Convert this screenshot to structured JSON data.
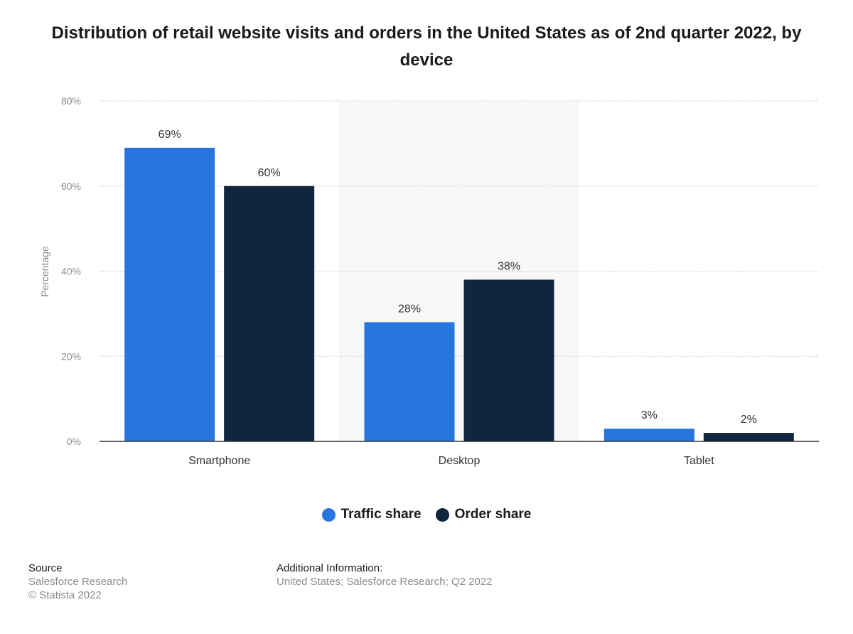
{
  "title": "Distribution of retail website visits and orders in the United States as of 2nd quarter 2022, by device",
  "chart_data": {
    "type": "bar",
    "categories": [
      "Smartphone",
      "Desktop",
      "Tablet"
    ],
    "series": [
      {
        "name": "Traffic share",
        "values": [
          69,
          28,
          3
        ],
        "labels": [
          "69%",
          "28%",
          "3%"
        ],
        "color": "#2876dd"
      },
      {
        "name": "Order share",
        "values": [
          60,
          38,
          2
        ],
        "labels": [
          "60%",
          "38%",
          "2%"
        ],
        "color": "#11253c"
      }
    ],
    "ylabel": "Percentage",
    "ylim": [
      0,
      80
    ],
    "yticks": [
      0,
      20,
      40,
      60,
      80
    ],
    "ytick_labels": [
      "0%",
      "20%",
      "40%",
      "60%",
      "80%"
    ],
    "grid": true,
    "legend_position": "bottom-center"
  },
  "legend": {
    "traffic_label": "Traffic share",
    "order_label": "Order share"
  },
  "footer": {
    "source_heading": "Source",
    "source_line1": "Salesforce Research",
    "source_line2": "© Statista 2022",
    "info_heading": "Additional Information:",
    "info_line1": "United States; Salesforce Research; Q2 2022"
  },
  "colors": {
    "traffic": "#2876dd",
    "order": "#11253c",
    "band": "#f7f7f7",
    "grid": "#cfcfcf",
    "axis": "#333333"
  }
}
